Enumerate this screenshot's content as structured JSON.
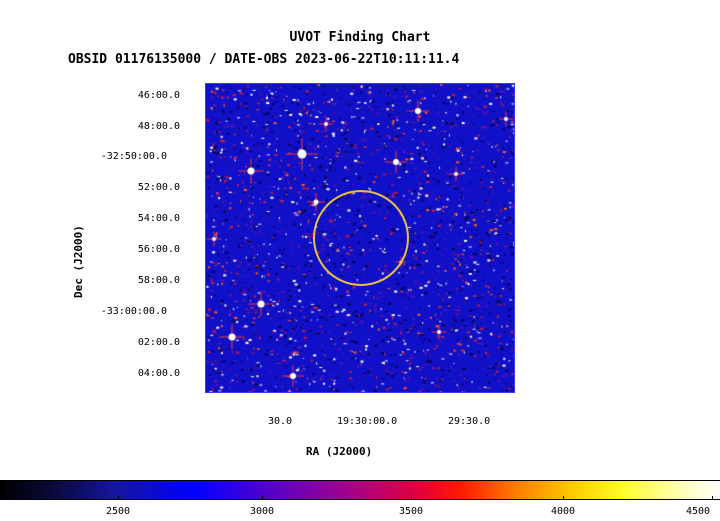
{
  "title": "UVOT Finding Chart",
  "subtitle": "OBSID 01176135000 / DATE-OBS 2023-06-22T10:11:11.4",
  "axes": {
    "xlabel": "RA (J2000)",
    "ylabel": "Dec (J2000)",
    "dec_ticks": [
      "46:00.0",
      "48:00.0",
      "-32:50:00.0",
      "52:00.0",
      "54:00.0",
      "56:00.0",
      "58:00.0",
      "-33:00:00.0",
      "02:00.0",
      "04:00.0"
    ],
    "ra_ticks": [
      "30.0",
      "19:30:00.0",
      "29:30.0"
    ]
  },
  "colorbar": {
    "ticks": [
      "2500",
      "3000",
      "3500",
      "4000",
      "4500"
    ],
    "range": [
      2200,
      4500
    ]
  },
  "colors": {
    "background": "#1010c8",
    "circle": "#e8c040"
  }
}
